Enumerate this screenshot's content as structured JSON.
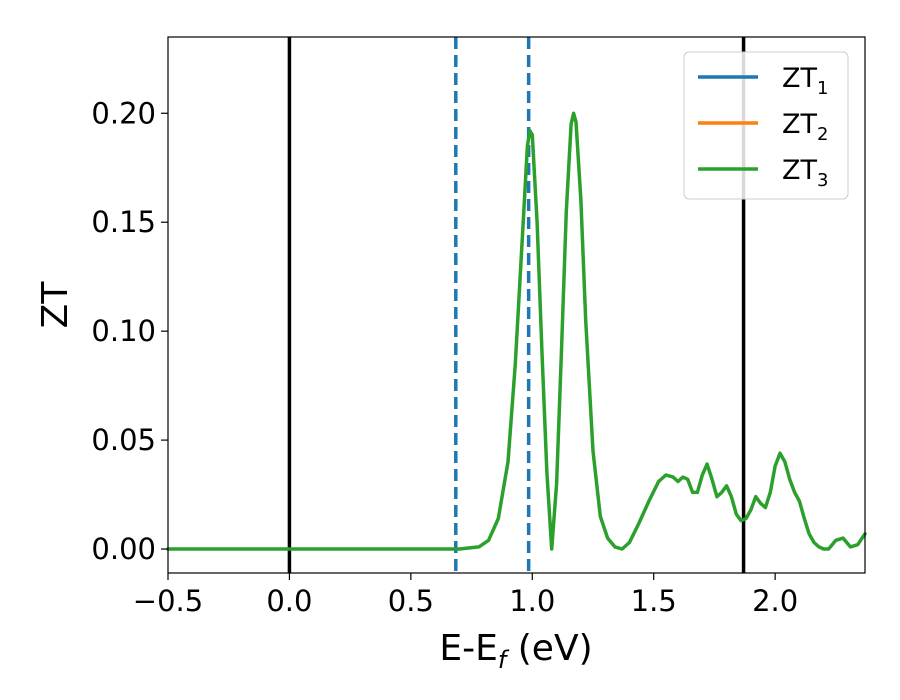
{
  "chart_data": {
    "type": "line",
    "title": "",
    "xlabel_main": "E-E",
    "xlabel_sub": "f",
    "xlabel_units": " (eV)",
    "ylabel": "ZT",
    "xlim": [
      -0.5,
      2.37
    ],
    "ylim": [
      -0.011,
      0.235
    ],
    "xticks": [
      -0.5,
      0.0,
      0.5,
      1.0,
      1.5,
      2.0
    ],
    "xtick_labels": [
      "−0.5",
      "0.0",
      "0.5",
      "1.0",
      "1.5",
      "2.0"
    ],
    "yticks": [
      0.0,
      0.05,
      0.1,
      0.15,
      0.2
    ],
    "ytick_labels": [
      "0.00",
      "0.05",
      "0.10",
      "0.15",
      "0.20"
    ],
    "grid": false,
    "legend_position": "top-right",
    "vlines": [
      {
        "x": 0.0,
        "style": "solid",
        "color": "#000000"
      },
      {
        "x": 1.87,
        "style": "solid",
        "color": "#000000"
      },
      {
        "x": 0.685,
        "style": "dashed",
        "color": "#1f77b4"
      },
      {
        "x": 0.985,
        "style": "dashed",
        "color": "#1f77b4"
      }
    ],
    "series": [
      {
        "name_main": "ZT",
        "name_sub": "1",
        "color": "#1f77b4",
        "visible_line": false
      },
      {
        "name_main": "ZT",
        "name_sub": "2",
        "color": "#ff7f0e",
        "visible_line": false
      },
      {
        "name_main": "ZT",
        "name_sub": "3",
        "color": "#2ca02c",
        "visible_line": true,
        "x": [
          -0.5,
          0.0,
          0.5,
          0.7,
          0.78,
          0.82,
          0.86,
          0.9,
          0.93,
          0.96,
          0.98,
          0.99,
          1.0,
          1.02,
          1.04,
          1.06,
          1.08,
          1.1,
          1.12,
          1.14,
          1.16,
          1.17,
          1.18,
          1.2,
          1.22,
          1.25,
          1.28,
          1.31,
          1.34,
          1.37,
          1.4,
          1.44,
          1.48,
          1.52,
          1.55,
          1.58,
          1.6,
          1.62,
          1.64,
          1.66,
          1.68,
          1.7,
          1.72,
          1.74,
          1.76,
          1.78,
          1.8,
          1.82,
          1.84,
          1.86,
          1.88,
          1.9,
          1.92,
          1.94,
          1.96,
          1.98,
          2.0,
          2.02,
          2.04,
          2.06,
          2.08,
          2.1,
          2.12,
          2.14,
          2.16,
          2.18,
          2.2,
          2.22,
          2.25,
          2.28,
          2.31,
          2.34,
          2.37
        ],
        "y": [
          0.0,
          0.0,
          0.0,
          0.0,
          0.001,
          0.004,
          0.014,
          0.04,
          0.085,
          0.145,
          0.185,
          0.192,
          0.19,
          0.15,
          0.09,
          0.035,
          0.0,
          0.03,
          0.09,
          0.155,
          0.195,
          0.2,
          0.196,
          0.16,
          0.105,
          0.045,
          0.015,
          0.005,
          0.001,
          0.0,
          0.003,
          0.012,
          0.022,
          0.031,
          0.034,
          0.033,
          0.031,
          0.033,
          0.032,
          0.026,
          0.026,
          0.034,
          0.039,
          0.032,
          0.024,
          0.026,
          0.029,
          0.024,
          0.016,
          0.013,
          0.014,
          0.018,
          0.024,
          0.021,
          0.019,
          0.026,
          0.038,
          0.044,
          0.04,
          0.032,
          0.026,
          0.022,
          0.014,
          0.007,
          0.003,
          0.001,
          0.0,
          0.0,
          0.004,
          0.005,
          0.001,
          0.002,
          0.007
        ]
      }
    ]
  }
}
